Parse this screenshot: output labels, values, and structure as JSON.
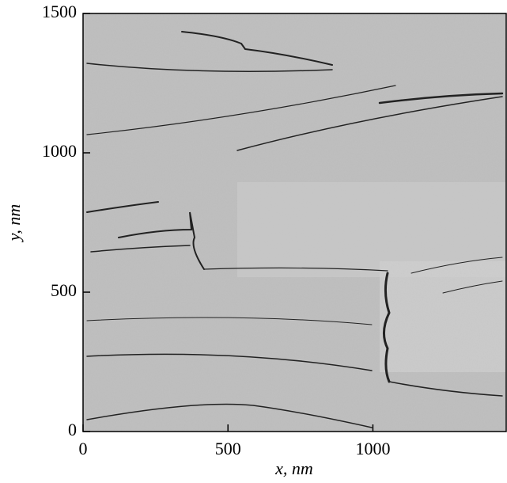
{
  "chart_data": {
    "type": "image",
    "xlabel": "x, nm",
    "ylabel": "y, nm",
    "xlim": [
      0,
      1460
    ],
    "ylim": [
      0,
      1500
    ],
    "xticks": [
      0,
      500,
      1000
    ],
    "yticks": [
      0,
      500,
      1000,
      1500
    ]
  }
}
